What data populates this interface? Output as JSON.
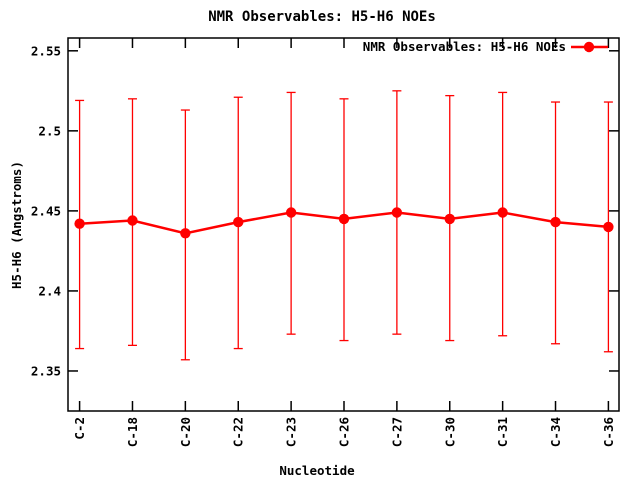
{
  "window": {
    "background": "#ffffff",
    "foreground": "#000000"
  },
  "chart_data": {
    "type": "line",
    "title": "NMR Observables: H5-H6 NOEs",
    "xlabel": "Nucleotide",
    "ylabel": "H5-H6 (Angstroms)",
    "legend": {
      "label": "NMR Observables: H5-H6 NOEs",
      "position": "top-right-inside",
      "marker": "filled-circle-with-line"
    },
    "series_color": "#ff0000",
    "axis_color": "#000000",
    "grid": false,
    "error_bars": true,
    "marker": "filled-circle",
    "categories": [
      "C-2",
      "C-18",
      "C-20",
      "C-22",
      "C-23",
      "C-26",
      "C-27",
      "C-30",
      "C-31",
      "C-34",
      "C-36"
    ],
    "values": [
      2.442,
      2.444,
      2.436,
      2.443,
      2.449,
      2.445,
      2.449,
      2.445,
      2.449,
      2.443,
      2.44
    ],
    "error_high": [
      2.519,
      2.52,
      2.513,
      2.521,
      2.524,
      2.52,
      2.525,
      2.522,
      2.524,
      2.518,
      2.518
    ],
    "error_low": [
      2.364,
      2.366,
      2.357,
      2.364,
      2.373,
      2.369,
      2.373,
      2.369,
      2.372,
      2.367,
      2.362
    ],
    "ylim": [
      2.325,
      2.558
    ],
    "yticks": [
      {
        "value": 2.35,
        "label": "2.35"
      },
      {
        "value": 2.4,
        "label": "2.4"
      },
      {
        "value": 2.45,
        "label": "2.45"
      },
      {
        "value": 2.5,
        "label": "2.5"
      },
      {
        "value": 2.55,
        "label": "2.55"
      }
    ]
  }
}
